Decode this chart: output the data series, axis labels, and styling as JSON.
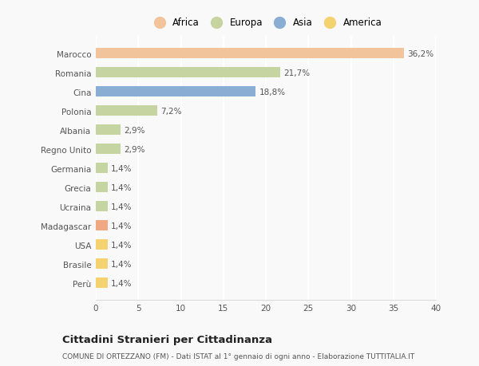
{
  "categories": [
    "Marocco",
    "Romania",
    "Cina",
    "Polonia",
    "Albania",
    "Regno Unito",
    "Germania",
    "Grecia",
    "Ucraina",
    "Madagascar",
    "USA",
    "Brasile",
    "Perù"
  ],
  "values": [
    36.2,
    21.7,
    18.8,
    7.2,
    2.9,
    2.9,
    1.4,
    1.4,
    1.4,
    1.4,
    1.4,
    1.4,
    1.4
  ],
  "labels": [
    "36,2%",
    "21,7%",
    "18,8%",
    "7,2%",
    "2,9%",
    "2,9%",
    "1,4%",
    "1,4%",
    "1,4%",
    "1,4%",
    "1,4%",
    "1,4%",
    "1,4%"
  ],
  "colors": [
    "#F2C49B",
    "#C5D4A0",
    "#8AADD4",
    "#C5D4A0",
    "#C5D4A0",
    "#C5D4A0",
    "#C5D4A0",
    "#C5D4A0",
    "#C5D4A0",
    "#F0A882",
    "#F5D270",
    "#F5D270",
    "#F5D270"
  ],
  "legend": [
    {
      "label": "Africa",
      "color": "#F2C49B"
    },
    {
      "label": "Europa",
      "color": "#C5D4A0"
    },
    {
      "label": "Asia",
      "color": "#8AADD4"
    },
    {
      "label": "America",
      "color": "#F5D270"
    }
  ],
  "xlim": [
    0,
    40
  ],
  "xticks": [
    0,
    5,
    10,
    15,
    20,
    25,
    30,
    35,
    40
  ],
  "title": "Cittadini Stranieri per Cittadinanza",
  "subtitle": "COMUNE DI ORTEZZANO (FM) - Dati ISTAT al 1° gennaio di ogni anno - Elaborazione TUTTITALIA.IT",
  "background_color": "#f9f9f9",
  "bar_height": 0.55,
  "grid_color": "#ffffff",
  "text_color": "#555555",
  "label_fontsize": 7.5,
  "tick_fontsize": 7.5
}
